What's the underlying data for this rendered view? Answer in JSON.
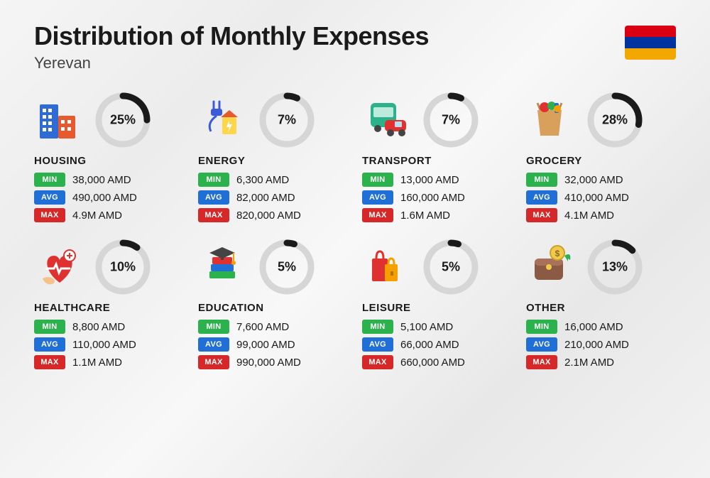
{
  "title": "Distribution of Monthly Expenses",
  "subtitle": "Yerevan",
  "flag_colors": [
    "#d90012",
    "#0033a0",
    "#f2a800"
  ],
  "donut": {
    "track_color": "#d6d6d6",
    "arc_color": "#1a1a1a",
    "stroke_width": 9,
    "radius": 34
  },
  "badges": {
    "min": {
      "label": "MIN",
      "bg": "#2bb24c"
    },
    "avg": {
      "label": "AVG",
      "bg": "#1f6fd6"
    },
    "max": {
      "label": "MAX",
      "bg": "#d62828"
    }
  },
  "categories": [
    {
      "name": "HOUSING",
      "pct": 25,
      "min": "38,000 AMD",
      "avg": "490,000 AMD",
      "max": "4.9M AMD",
      "icon": "housing"
    },
    {
      "name": "ENERGY",
      "pct": 7,
      "min": "6,300 AMD",
      "avg": "82,000 AMD",
      "max": "820,000 AMD",
      "icon": "energy"
    },
    {
      "name": "TRANSPORT",
      "pct": 7,
      "min": "13,000 AMD",
      "avg": "160,000 AMD",
      "max": "1.6M AMD",
      "icon": "transport"
    },
    {
      "name": "GROCERY",
      "pct": 28,
      "min": "32,000 AMD",
      "avg": "410,000 AMD",
      "max": "4.1M AMD",
      "icon": "grocery"
    },
    {
      "name": "HEALTHCARE",
      "pct": 10,
      "min": "8,800 AMD",
      "avg": "110,000 AMD",
      "max": "1.1M AMD",
      "icon": "healthcare"
    },
    {
      "name": "EDUCATION",
      "pct": 5,
      "min": "7,600 AMD",
      "avg": "99,000 AMD",
      "max": "990,000 AMD",
      "icon": "education"
    },
    {
      "name": "LEISURE",
      "pct": 5,
      "min": "5,100 AMD",
      "avg": "66,000 AMD",
      "max": "660,000 AMD",
      "icon": "leisure"
    },
    {
      "name": "OTHER",
      "pct": 13,
      "min": "16,000 AMD",
      "avg": "210,000 AMD",
      "max": "2.1M AMD",
      "icon": "other"
    }
  ]
}
